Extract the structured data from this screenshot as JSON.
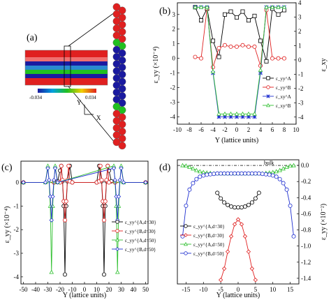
{
  "panels": {
    "a": {
      "label": "(a)",
      "colorbar": {
        "min_label": "-0.034",
        "max_label": "0.034"
      },
      "axes_labels": {
        "y": "Y",
        "x": "X"
      }
    },
    "b": {
      "label": "(b)"
    },
    "c": {
      "label": "(c)"
    },
    "d": {
      "label": "(d)",
      "annotation": "bulk"
    }
  },
  "chart_data": [
    {
      "panel": "b",
      "type": "line",
      "xlabel": "Y (lattice units)",
      "ylabel_left": "ε_yy (×10⁻⁴)",
      "ylabel_right": "ε_xy",
      "xlim": [
        -10,
        10
      ],
      "xticks": [
        -10,
        -8,
        -6,
        -4,
        -2,
        0,
        2,
        4,
        6,
        8,
        10
      ],
      "ylim_left": [
        -4.5,
        3.8
      ],
      "yticks_left": [
        -4,
        -3,
        -2,
        -1,
        0,
        1,
        2,
        3
      ],
      "ylim_right": [
        -4.5,
        4
      ],
      "yticks_right": [
        -4,
        -3,
        -2,
        -1,
        0,
        1,
        2,
        3,
        4
      ],
      "series": [
        {
          "name": "ε_yy^A",
          "color": "#000000",
          "marker": "square",
          "x": [
            -7,
            -6,
            -5,
            -4,
            -3,
            -2,
            -1,
            0,
            1,
            2,
            3,
            4,
            5,
            6,
            7,
            8
          ],
          "y": [
            3.5,
            2.6,
            3.4,
            1.2,
            0.1,
            3.0,
            3.2,
            2.8,
            3.2,
            2.6,
            2.9,
            1.2,
            -0.2,
            3.4,
            3.0,
            3.3
          ]
        },
        {
          "name": "ε_yy^B",
          "color": "#e02020",
          "marker": "circle",
          "x": [
            -7,
            -6,
            -5,
            -4,
            -3,
            -2,
            -1,
            0,
            1,
            2,
            3,
            4,
            5,
            6,
            7,
            8
          ],
          "y": [
            0.1,
            0.0,
            3.4,
            -0.6,
            0.7,
            0.9,
            0.8,
            0.8,
            0.9,
            0.8,
            0.8,
            -0.5,
            3.3,
            0.0,
            0.0,
            0.0
          ]
        },
        {
          "name": "ε_xy^A",
          "color": "#2030d0",
          "marker": "star",
          "x": [
            -7,
            -6,
            -5,
            -4,
            -3,
            -2,
            -1,
            0,
            1,
            2,
            3,
            4,
            5,
            6,
            7,
            8
          ],
          "y": [
            3.5,
            3.5,
            3.5,
            -1.0,
            -4.0,
            -4.0,
            -4.0,
            -4.0,
            -4.0,
            -4.0,
            -4.0,
            -1.0,
            3.5,
            3.5,
            3.5,
            3.5
          ]
        },
        {
          "name": "ε_xy^B",
          "color": "#30c030",
          "marker": "triangle",
          "x": [
            -7,
            -6,
            -5,
            -4,
            -3,
            -2,
            -1,
            0,
            1,
            2,
            3,
            4,
            5,
            6,
            7,
            8
          ],
          "y": [
            3.5,
            3.5,
            3.5,
            -0.9,
            -3.8,
            -3.8,
            -3.8,
            -3.8,
            -3.8,
            -3.8,
            -3.8,
            -0.8,
            3.5,
            3.5,
            3.5,
            3.5
          ]
        }
      ]
    },
    {
      "panel": "c",
      "type": "line",
      "xlabel": "Y (lattice units)",
      "ylabel": "ε_yy (×10⁻⁴)",
      "xlim": [
        -52,
        52
      ],
      "xticks": [
        -50,
        -40,
        -30,
        -20,
        -10,
        0,
        10,
        20,
        30,
        40,
        50
      ],
      "ylim": [
        -4.3,
        0.9
      ],
      "yticks": [
        -4,
        -3,
        -2,
        -1,
        0
      ],
      "series": [
        {
          "name": "ε_yy^{A,d=30}",
          "color": "#000000",
          "marker": "circle",
          "x": [
            -50,
            -25,
            -22,
            -20,
            -19,
            -18,
            -17,
            -16,
            -15,
            -14,
            -12,
            -10,
            10,
            12,
            14,
            15,
            16,
            17,
            18,
            19,
            20,
            22,
            25,
            50
          ],
          "y": [
            0,
            0,
            0.05,
            0.5,
            0.7,
            0.05,
            -1.0,
            -3.9,
            -1.0,
            0.05,
            0.7,
            0,
            0,
            0.7,
            0.05,
            -1.0,
            -3.9,
            -1.0,
            0.05,
            0.7,
            0.5,
            0.05,
            0,
            0
          ]
        },
        {
          "name": "ε_yy^{B,d=30}",
          "color": "#e02020",
          "marker": "circle",
          "x": [
            -50,
            -25,
            -20,
            -19,
            -18,
            -17,
            -16,
            -15,
            -14,
            -13,
            -12,
            -10,
            10,
            12,
            13,
            14,
            15,
            16,
            17,
            18,
            19,
            20,
            25,
            50
          ],
          "y": [
            0,
            0,
            0,
            0.7,
            0.1,
            -0.8,
            -1.6,
            -0.8,
            0.1,
            0.7,
            0.05,
            0,
            0,
            0.05,
            0.7,
            0.1,
            -0.8,
            -1.6,
            -0.8,
            0.1,
            0.7,
            0,
            0,
            0
          ]
        },
        {
          "name": "ε_yy^{A,d=50}",
          "color": "#30c030",
          "marker": "triangle",
          "x": [
            -50,
            -32,
            -30,
            -29,
            -28,
            -27,
            -26,
            -25,
            -24,
            -22,
            24,
            25,
            26,
            27,
            28,
            29,
            30,
            32,
            50
          ],
          "y": [
            0,
            0,
            0.7,
            0.05,
            -1.0,
            -3.8,
            -1.0,
            0.05,
            0.7,
            0,
            0.7,
            0.05,
            -1.0,
            -3.8,
            -1.0,
            0.05,
            0.7,
            0,
            0
          ]
        },
        {
          "name": "ε_yy^{B,d=50}",
          "color": "#2030d0",
          "marker": "diamond",
          "x": [
            -50,
            -32,
            -30,
            -29,
            -28,
            -27,
            -26,
            -25,
            -24,
            -22,
            24,
            25,
            26,
            27,
            28,
            29,
            30,
            32,
            50
          ],
          "y": [
            0,
            0,
            0.6,
            0.1,
            -0.6,
            -1.6,
            -0.6,
            0.1,
            0.6,
            0,
            0.6,
            0.1,
            -0.6,
            -1.6,
            -0.6,
            0.1,
            0.6,
            0,
            0
          ]
        }
      ]
    },
    {
      "panel": "d",
      "type": "line",
      "xlabel": "Y (lattice units)",
      "ylabel_right": "ε_yy (×10⁻²)",
      "xlim": [
        -17.5,
        17.5
      ],
      "xticks": [
        -15,
        -10,
        -5,
        0,
        5,
        10,
        15
      ],
      "ylim": [
        -1.47,
        0.07
      ],
      "yticks": [
        0.0,
        -0.2,
        -0.4,
        -0.6,
        -0.8,
        -1.0,
        -1.2,
        -1.4
      ],
      "reference_line": {
        "label": "bulk",
        "y": 0.0
      },
      "series": [
        {
          "name": "ε_yy^{A,d=30}",
          "color": "#000000",
          "marker": "circle",
          "x": [
            -6,
            -5,
            -4,
            -3,
            -2,
            -1,
            0,
            1,
            2,
            3,
            4,
            5,
            6
          ],
          "y": [
            -0.34,
            -0.41,
            -0.46,
            -0.49,
            -0.51,
            -0.52,
            -0.52,
            -0.52,
            -0.51,
            -0.49,
            -0.46,
            -0.41,
            -0.34
          ]
        },
        {
          "name": "ε_yy^{B,d=30}",
          "color": "#e02020",
          "marker": "diamond",
          "x": [
            -5,
            -4,
            -3,
            -2,
            -1,
            0,
            1,
            2,
            3,
            4,
            5
          ],
          "y": [
            -1.42,
            -1.28,
            -1.07,
            -0.88,
            -0.73,
            -0.67,
            -0.73,
            -0.88,
            -1.07,
            -1.28,
            -1.42
          ]
        },
        {
          "name": "ε_yy^{A,d=50}",
          "color": "#30c030",
          "marker": "triangle",
          "x": [
            -16,
            -15,
            -14,
            -13,
            -12,
            -11,
            -10,
            -9,
            -8,
            -7,
            -6,
            -5,
            -4,
            -3,
            -2,
            -1,
            0,
            1,
            2,
            3,
            4,
            5,
            6,
            7,
            8,
            9,
            10,
            11,
            12,
            13,
            14,
            15,
            16
          ],
          "y": [
            0,
            -0.005,
            -0.02,
            -0.04,
            -0.06,
            -0.075,
            -0.085,
            -0.09,
            -0.095,
            -0.1,
            -0.1,
            -0.1,
            -0.1,
            -0.1,
            -0.1,
            -0.1,
            -0.1,
            -0.1,
            -0.1,
            -0.1,
            -0.1,
            -0.1,
            -0.1,
            -0.1,
            -0.095,
            -0.09,
            -0.085,
            -0.075,
            -0.06,
            -0.04,
            -0.02,
            -0.005,
            0
          ]
        },
        {
          "name": "ε_yy^{B,d=50}",
          "color": "#2030d0",
          "marker": "circle",
          "x": [
            -16,
            -15,
            -14,
            -13,
            -12,
            -11,
            -10,
            -9,
            -8,
            -7,
            -6,
            -5,
            -4,
            -3,
            -2,
            -1,
            0,
            1,
            2,
            3,
            4,
            5,
            6,
            7,
            8,
            9,
            10,
            11,
            12,
            13,
            14,
            15,
            16
          ],
          "y": [
            -0.88,
            -0.5,
            -0.3,
            -0.22,
            -0.17,
            -0.14,
            -0.125,
            -0.115,
            -0.11,
            -0.105,
            -0.1,
            -0.1,
            -0.1,
            -0.1,
            -0.1,
            -0.1,
            -0.1,
            -0.1,
            -0.1,
            -0.1,
            -0.1,
            -0.1,
            -0.1,
            -0.105,
            -0.11,
            -0.115,
            -0.125,
            -0.14,
            -0.17,
            -0.22,
            -0.3,
            -0.5,
            -0.88
          ]
        }
      ]
    }
  ]
}
